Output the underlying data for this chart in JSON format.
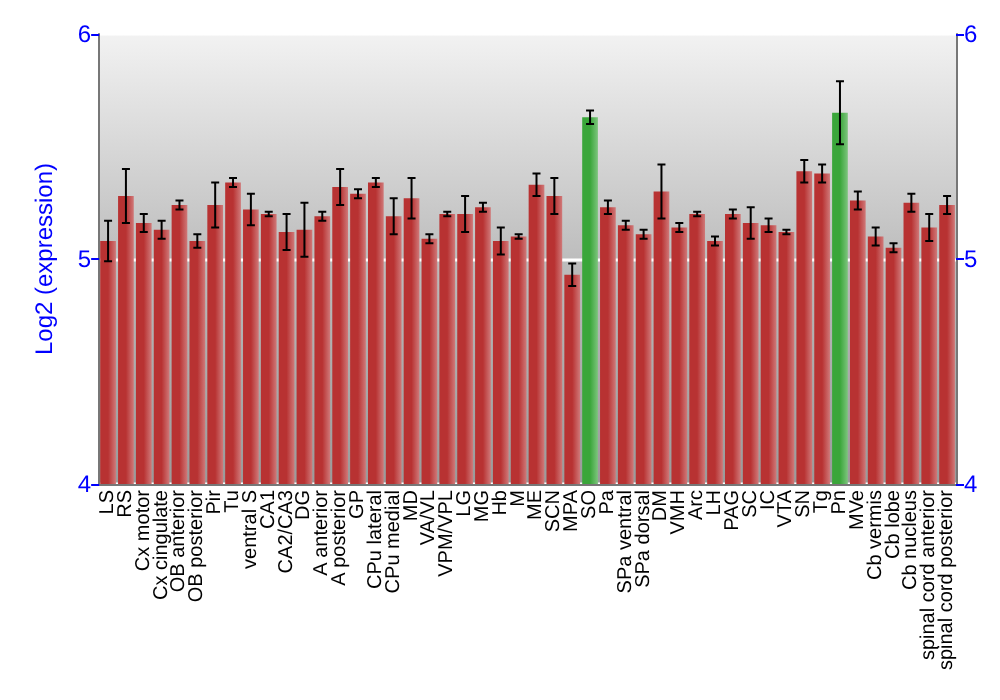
{
  "chart_data": {
    "type": "bar",
    "ylabel": "Log2 (expression)",
    "categories": [
      "LS",
      "RS",
      "Cx motor",
      "Cx cingulate",
      "OB anterior",
      "OB posterior",
      "Pir",
      "Tu",
      "ventral S",
      "CA1",
      "CA2/CA3",
      "DG",
      "A anterior",
      "A posterior",
      "GP",
      "CPu lateral",
      "CPu medial",
      "MD",
      "VA/VL",
      "VPM/VPL",
      "LG",
      "MG",
      "Hb",
      "M",
      "ME",
      "SCN",
      "MPA",
      "SO",
      "Pa",
      "SPa ventral",
      "SPa dorsal",
      "DM",
      "VMH",
      "Arc",
      "LH",
      "PAG",
      "SC",
      "IC",
      "VTA",
      "SN",
      "Tg",
      "Pn",
      "MVe",
      "Cb vermis",
      "Cb lobe",
      "Cb nucleus",
      "spinal cord anterior",
      "spinal cord posterior"
    ],
    "values": [
      5.08,
      5.28,
      5.16,
      5.13,
      5.24,
      5.08,
      5.24,
      5.34,
      5.22,
      5.2,
      5.12,
      5.13,
      5.19,
      5.32,
      5.29,
      5.34,
      5.19,
      5.27,
      5.09,
      5.2,
      5.2,
      5.23,
      5.08,
      5.1,
      5.33,
      5.28,
      4.93,
      5.63,
      5.23,
      5.15,
      5.11,
      5.3,
      5.14,
      5.2,
      5.08,
      5.2,
      5.16,
      5.15,
      5.12,
      5.39,
      5.38,
      5.65,
      5.26,
      5.1,
      5.05,
      5.25,
      5.14,
      5.24
    ],
    "errors": [
      0.09,
      0.12,
      0.04,
      0.04,
      0.02,
      0.03,
      0.1,
      0.02,
      0.07,
      0.01,
      0.08,
      0.12,
      0.02,
      0.08,
      0.02,
      0.02,
      0.08,
      0.09,
      0.02,
      0.01,
      0.08,
      0.02,
      0.06,
      0.01,
      0.05,
      0.08,
      0.05,
      0.03,
      0.03,
      0.02,
      0.02,
      0.12,
      0.02,
      0.01,
      0.02,
      0.02,
      0.07,
      0.03,
      0.01,
      0.05,
      0.04,
      0.14,
      0.04,
      0.04,
      0.02,
      0.04,
      0.06,
      0.04
    ],
    "colors": [
      "#b83232",
      "#b83232",
      "#b83232",
      "#b83232",
      "#b83232",
      "#b83232",
      "#b83232",
      "#b83232",
      "#b83232",
      "#b83232",
      "#b83232",
      "#b83232",
      "#b83232",
      "#b83232",
      "#b83232",
      "#b83232",
      "#b83232",
      "#b83232",
      "#b83232",
      "#b83232",
      "#b83232",
      "#b83232",
      "#b83232",
      "#b83232",
      "#b83232",
      "#b83232",
      "#b83232",
      "#3aa63a",
      "#b83232",
      "#b83232",
      "#b83232",
      "#b83232",
      "#b83232",
      "#b83232",
      "#b83232",
      "#b83232",
      "#b83232",
      "#b83232",
      "#b83232",
      "#b83232",
      "#b83232",
      "#3aa63a",
      "#b83232",
      "#b83232",
      "#b83232",
      "#b83232",
      "#b83232",
      "#b83232"
    ],
    "ylim": [
      4,
      6
    ],
    "yticks": [
      4,
      5,
      6
    ],
    "y2lim": [
      4,
      6
    ],
    "y2ticks": [
      4,
      5,
      6
    ],
    "grid": "y"
  }
}
